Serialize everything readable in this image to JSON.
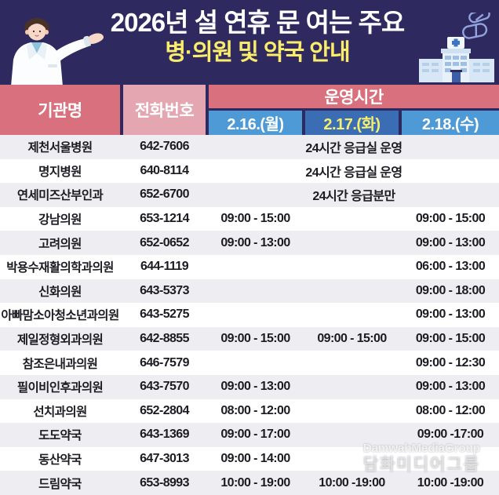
{
  "header": {
    "title_line1": "2026년 설 연휴 문 여는 주요",
    "title_line2": "병·의원 및 약국 안내",
    "bg_color": "#2e2a5f",
    "title1_color": "#ffffff",
    "title2_color": "#f6ee6d"
  },
  "icons": {
    "doctor": "doctor-illustration",
    "hospital": "hospital-building-illustration",
    "pills": "capsule-pills-icon"
  },
  "table": {
    "columns": {
      "name": "기관명",
      "phone": "전화번호",
      "hours": "운영시간",
      "date1": "2.16.(월)",
      "date2": "2.17.(화)",
      "date3": "2.18.(수)"
    },
    "colors": {
      "header_rose": "#d9707d",
      "header_pink": "#e4a7b2",
      "date_blue_light": "#4e9ad6",
      "date_blue_dark": "#3a6db3",
      "date_highlight_text": "#f6ee6d",
      "row_alt": "#eeeef2",
      "row_white": "#ffffff",
      "border_navy": "#2e2a5f",
      "text_dark": "#1b1b22"
    },
    "rows": [
      {
        "name": "제천서울병원",
        "phone": "642-7606",
        "span": "24시간 응급실 운영"
      },
      {
        "name": "명지병원",
        "phone": "640-8114",
        "span": "24시간 응급실 운영"
      },
      {
        "name": "연세미즈산부인과",
        "phone": "652-6700",
        "span": "24시간 응급분만"
      },
      {
        "name": "강남의원",
        "phone": "653-1214",
        "d1": "09:00 - 15:00",
        "d2": "",
        "d3": "09:00 - 15:00"
      },
      {
        "name": "고려의원",
        "phone": "652-0652",
        "d1": "09:00 - 13:00",
        "d2": "",
        "d3": "09:00 - 13:00"
      },
      {
        "name": "박용수재활의학과의원",
        "phone": "644-1119",
        "d1": "",
        "d2": "",
        "d3": "06:00 - 13:00"
      },
      {
        "name": "신화의원",
        "phone": "643-5373",
        "d1": "",
        "d2": "",
        "d3": "09:00 - 18:00"
      },
      {
        "name": "아빠맘소아청소년과의원",
        "phone": "643-5275",
        "d1": "",
        "d2": "",
        "d3": "09:00 - 13:00"
      },
      {
        "name": "제일정형외과의원",
        "phone": "642-8855",
        "d1": "09:00 - 15:00",
        "d2": "09:00 - 15:00",
        "d3": "09:00 - 15:00"
      },
      {
        "name": "참조은내과의원",
        "phone": "646-7579",
        "d1": "",
        "d2": "",
        "d3": "09:00 - 12:30"
      },
      {
        "name": "필이비인후과의원",
        "phone": "643-7570",
        "d1": "09:00 - 13:00",
        "d2": "",
        "d3": "09:00 - 13:00"
      },
      {
        "name": "선치과의원",
        "phone": "652-2804",
        "d1": "08:00 - 12:00",
        "d2": "",
        "d3": "08:00 - 12:00"
      },
      {
        "name": "도도약국",
        "phone": "643-1369",
        "d1": "09:00 - 17:00",
        "d2": "",
        "d3": "09:00 -17:00"
      },
      {
        "name": "동산약국",
        "phone": "647-3013",
        "d1": "09:00 - 14:00",
        "d2": "",
        "d3": ""
      },
      {
        "name": "드림약국",
        "phone": "653-8993",
        "d1": "10:00 - 19:00",
        "d2": "10:00 -19:00",
        "d3": "10:00 -19:00"
      }
    ]
  },
  "watermark": {
    "line1": "DamwahMediaGroup",
    "line2": "담화미디어그룹"
  }
}
